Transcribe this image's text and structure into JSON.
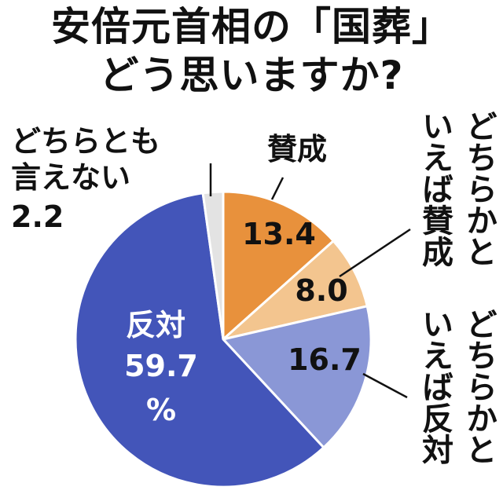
{
  "title": {
    "line1": "安倍元首相の「国葬」",
    "line2": "どう思いますか?"
  },
  "chart_data": {
    "type": "pie",
    "slices": [
      {
        "name": "賛成",
        "value": 13.4,
        "color": "#e8913c"
      },
      {
        "name": "どちらかといえば賛成",
        "value": 8.0,
        "color": "#f3c58f"
      },
      {
        "name": "どちらかといえば反対",
        "value": 16.7,
        "color": "#8a97d6"
      },
      {
        "name": "反対",
        "value": 59.7,
        "color": "#4355b9"
      },
      {
        "name": "どちらとも言えない",
        "value": 2.2,
        "color": "#e3e3e3"
      }
    ],
    "value_labels": {
      "s1": "13.4",
      "s2": "8.0",
      "s3": "16.7",
      "s4": "59.7",
      "s5": "2.2",
      "unit": "%"
    },
    "category_labels": {
      "s1": "賛成",
      "s2_col1": "どちらかと",
      "s2_col2": "いえば賛成",
      "s3_col1": "どちらかと",
      "s3_col2": "いえば反対",
      "s4": "反対",
      "s5_line1": "どちらとも",
      "s5_line2": "言えない"
    }
  }
}
